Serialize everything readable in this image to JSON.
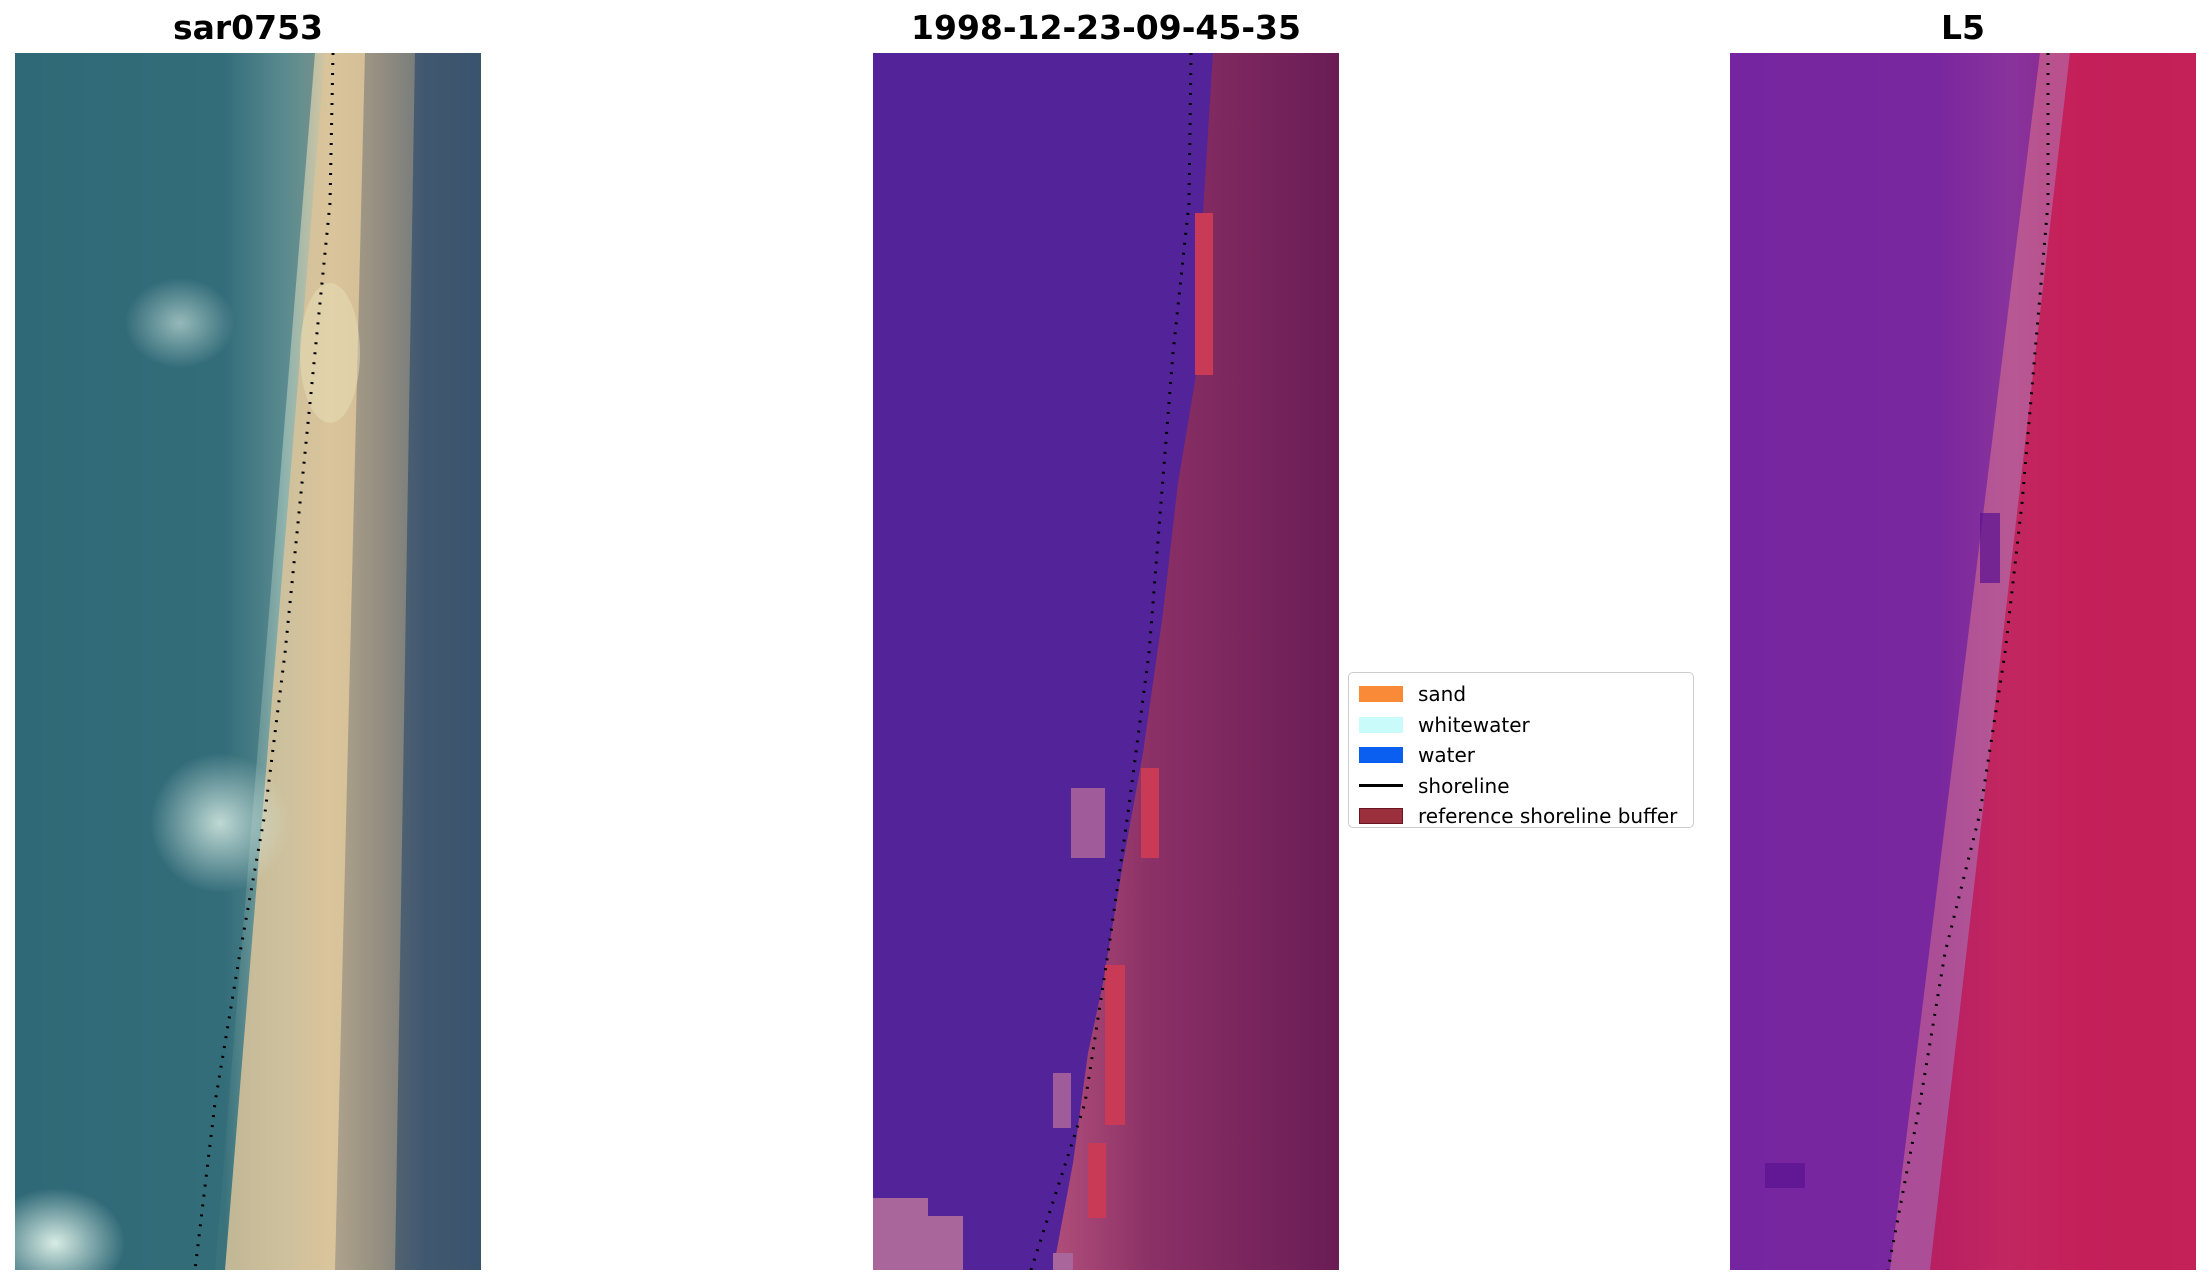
{
  "panels": [
    {
      "title": "sar0753",
      "kind": "rgb"
    },
    {
      "title": "1998-12-23-09-45-35",
      "kind": "classified"
    },
    {
      "title": "L5",
      "kind": "index"
    }
  ],
  "legend": {
    "items": [
      {
        "label": "sand",
        "color": "#f98b38",
        "type": "patch"
      },
      {
        "label": "whitewater",
        "color": "#c9fbfb",
        "type": "patch"
      },
      {
        "label": "water",
        "color": "#0a5ef0",
        "type": "patch"
      },
      {
        "label": "shoreline",
        "color": "#000000",
        "type": "line"
      },
      {
        "label": "reference shoreline buffer",
        "color": "#9b2f3c",
        "type": "patch",
        "edge": "#6a1522"
      }
    ]
  },
  "colors": {
    "rgb_water": "#3a6e7c",
    "rgb_sand": "#d8c39c",
    "rgb_land": "#3c5670",
    "classified_water": "#53249a",
    "classified_land": "#7a2160",
    "classified_buffer": "#b8415e",
    "index_water": "#6a1aa0",
    "index_land": "#c41f56"
  }
}
